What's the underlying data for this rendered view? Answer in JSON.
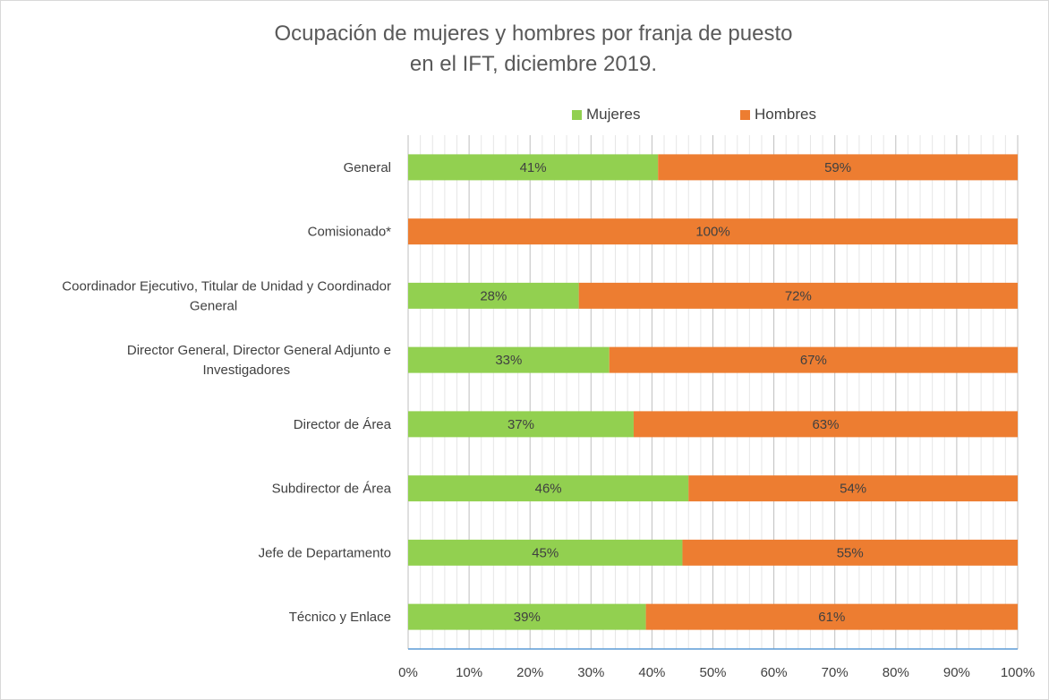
{
  "title_line1": "Ocupación de mujeres y hombres por franja de puesto",
  "title_line2": "en el IFT, diciembre 2019.",
  "legend": [
    {
      "label": "Mujeres",
      "color": "#92d050"
    },
    {
      "label": "Hombres",
      "color": "#ed7d31"
    }
  ],
  "chart_data": {
    "type": "bar",
    "orientation": "horizontal",
    "stacked": "percent",
    "title": "Ocupación de mujeres y hombres por franja de puesto en el IFT, diciembre 2019.",
    "categories": [
      [
        "General"
      ],
      [
        "Comisionado*"
      ],
      [
        "Coordinador Ejecutivo, Titular de Unidad y Coordinador",
        "General"
      ],
      [
        "Director General, Director General Adjunto e",
        "Investigadores"
      ],
      [
        "Director de Área"
      ],
      [
        "Subdirector de Área"
      ],
      [
        "Jefe de Departamento"
      ],
      [
        "Técnico y Enlace"
      ]
    ],
    "series": [
      {
        "name": "Mujeres",
        "color": "#92d050",
        "values": [
          41,
          0,
          28,
          33,
          37,
          46,
          45,
          39
        ]
      },
      {
        "name": "Hombres",
        "color": "#ed7d31",
        "values": [
          59,
          100,
          72,
          67,
          63,
          54,
          55,
          61
        ]
      }
    ],
    "xticks": [
      "0%",
      "10%",
      "20%",
      "30%",
      "40%",
      "50%",
      "60%",
      "70%",
      "80%",
      "90%",
      "100%"
    ],
    "xlim": [
      0,
      100
    ],
    "grid": true,
    "legend_position": "top"
  }
}
